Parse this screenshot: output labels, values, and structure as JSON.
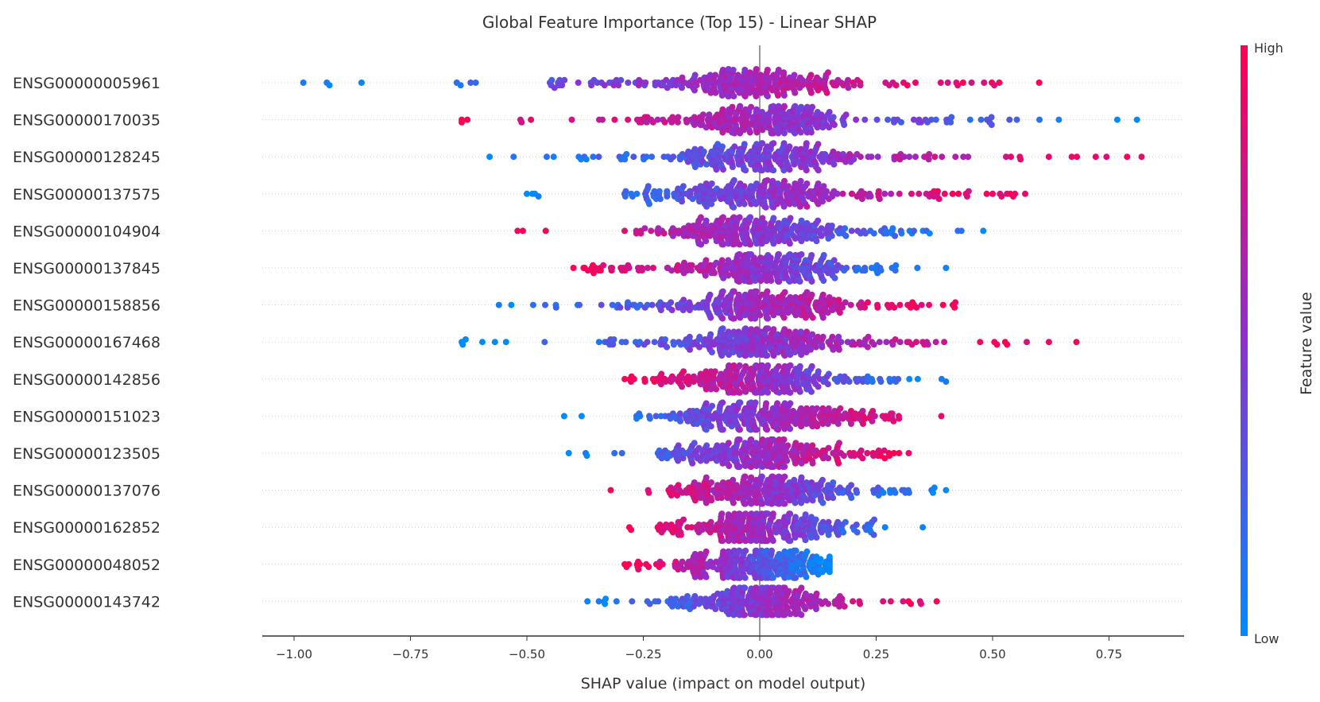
{
  "chart_data": {
    "type": "scatter",
    "subtype": "beeswarm",
    "title": "Global Feature Importance (Top 15) - Linear SHAP",
    "xlabel": "SHAP value (impact on model output)",
    "xlim": [
      -1.07,
      0.91
    ],
    "xticks": [
      -1.0,
      -0.75,
      -0.5,
      -0.25,
      0.0,
      0.25,
      0.5,
      0.75
    ],
    "xtick_labels": [
      "−1.00",
      "−0.75",
      "−0.50",
      "−0.25",
      "0.00",
      "0.25",
      "0.50",
      "0.75"
    ],
    "zero_line": 0.0,
    "colorbar": {
      "label": "Feature value",
      "high_label": "High",
      "low_label": "Low",
      "high_color": "#ff0052",
      "low_color": "#008bfb"
    },
    "features": [
      {
        "name": "ENSG00000005961",
        "min": -0.98,
        "max": 0.6,
        "min_is_high": false,
        "dense": [
          -0.45,
          0.35
        ],
        "core": 0.2
      },
      {
        "name": "ENSG00000170035",
        "min": -0.64,
        "max": 0.81,
        "min_is_high": true,
        "dense": [
          -0.35,
          0.55
        ],
        "core": 0.2
      },
      {
        "name": "ENSG00000128245",
        "min": -0.58,
        "max": 0.82,
        "min_is_high": false,
        "dense": [
          -0.4,
          0.45
        ],
        "core": 0.2
      },
      {
        "name": "ENSG00000137575",
        "min": -0.5,
        "max": 0.57,
        "min_is_high": false,
        "dense": [
          -0.3,
          0.4
        ],
        "core": 0.2
      },
      {
        "name": "ENSG00000104904",
        "min": -0.52,
        "max": 0.48,
        "min_is_high": true,
        "dense": [
          -0.3,
          0.4
        ],
        "core": 0.2
      },
      {
        "name": "ENSG00000137845",
        "min": -0.4,
        "max": 0.4,
        "min_is_high": true,
        "dense": [
          -0.4,
          0.3
        ],
        "core": 0.18
      },
      {
        "name": "ENSG00000158856",
        "min": -0.56,
        "max": 0.42,
        "min_is_high": false,
        "dense": [
          -0.35,
          0.35
        ],
        "core": 0.2
      },
      {
        "name": "ENSG00000167468",
        "min": -0.64,
        "max": 0.68,
        "min_is_high": false,
        "dense": [
          -0.35,
          0.4
        ],
        "core": 0.2
      },
      {
        "name": "ENSG00000142856",
        "min": -0.29,
        "max": 0.4,
        "min_is_high": true,
        "dense": [
          -0.28,
          0.3
        ],
        "core": 0.2
      },
      {
        "name": "ENSG00000151023",
        "min": -0.42,
        "max": 0.39,
        "min_is_high": false,
        "dense": [
          -0.25,
          0.3
        ],
        "core": 0.2
      },
      {
        "name": "ENSG00000123505",
        "min": -0.41,
        "max": 0.32,
        "min_is_high": false,
        "dense": [
          -0.22,
          0.28
        ],
        "core": 0.18
      },
      {
        "name": "ENSG00000137076",
        "min": -0.32,
        "max": 0.4,
        "min_is_high": true,
        "dense": [
          -0.2,
          0.3
        ],
        "core": 0.2
      },
      {
        "name": "ENSG00000162852",
        "min": -0.28,
        "max": 0.35,
        "min_is_high": true,
        "dense": [
          -0.22,
          0.25
        ],
        "core": 0.18
      },
      {
        "name": "ENSG00000048052",
        "min": -0.29,
        "max": 0.15,
        "min_is_high": true,
        "dense": [
          -0.29,
          0.15
        ],
        "core": 0.18
      },
      {
        "name": "ENSG00000143742",
        "min": -0.37,
        "max": 0.38,
        "min_is_high": false,
        "dense": [
          -0.2,
          0.22
        ],
        "core": 0.16
      }
    ]
  }
}
